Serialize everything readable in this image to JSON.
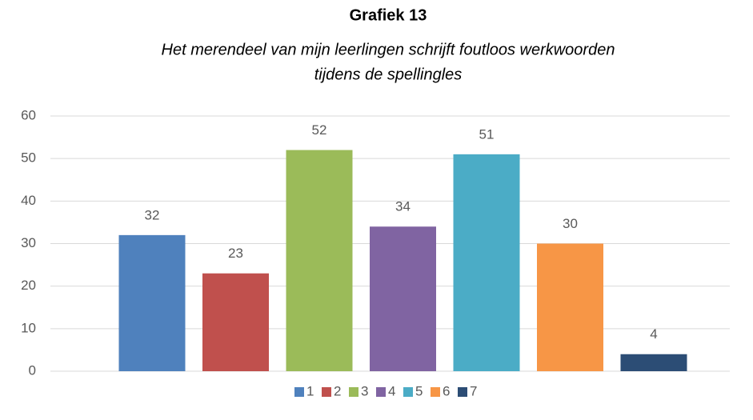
{
  "chart_data": {
    "type": "bar",
    "title": "Grafiek 13",
    "subtitle": [
      "Het merendeel van mijn leerlingen schrijft foutloos werkwoorden",
      "tijdens de spellingles"
    ],
    "categories": [
      null
    ],
    "series": [
      {
        "name": "1",
        "color": "#4f81bd",
        "values": [
          32
        ]
      },
      {
        "name": "2",
        "color": "#c0504d",
        "values": [
          23
        ]
      },
      {
        "name": "3",
        "color": "#9bbb59",
        "values": [
          52
        ]
      },
      {
        "name": "4",
        "color": "#8064a2",
        "values": [
          34
        ]
      },
      {
        "name": "5",
        "color": "#4bacc6",
        "values": [
          51
        ]
      },
      {
        "name": "6",
        "color": "#f79646",
        "values": [
          30
        ]
      },
      {
        "name": "7",
        "color": "#2c4d75",
        "values": [
          4
        ]
      }
    ],
    "ylim": [
      0,
      60
    ],
    "yticks": [
      0,
      10,
      20,
      30,
      40,
      50,
      60
    ],
    "grid": true,
    "legend": "bottom"
  }
}
